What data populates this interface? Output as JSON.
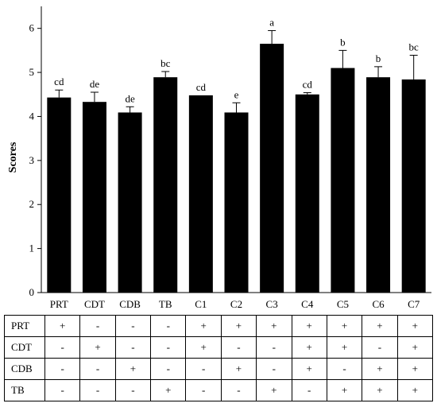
{
  "chart_data": {
    "type": "bar",
    "ylabel": "Scores",
    "xlabel": "",
    "ylim": [
      0,
      6.5
    ],
    "yticks": [
      0,
      1,
      2,
      3,
      4,
      5,
      6
    ],
    "categories": [
      "PRT",
      "CDT",
      "CDB",
      "TB",
      "C1",
      "C2",
      "C3",
      "C4",
      "C5",
      "C6",
      "C7"
    ],
    "values": [
      4.43,
      4.33,
      4.09,
      4.89,
      4.48,
      4.09,
      5.65,
      4.5,
      5.1,
      4.89,
      4.84
    ],
    "errors": [
      0.17,
      0.22,
      0.13,
      0.13,
      0.0,
      0.22,
      0.3,
      0.04,
      0.4,
      0.24,
      0.55
    ],
    "significance": [
      "cd",
      "de",
      "de",
      "bc",
      "cd",
      "e",
      "a",
      "cd",
      "b",
      "b",
      "bc"
    ],
    "bar_color": "#000000",
    "grid": false
  },
  "design_table": {
    "rows": [
      {
        "label": "PRT",
        "cells": [
          "+",
          "-",
          "-",
          "-",
          "+",
          "+",
          "+",
          "+",
          "+",
          "+",
          "+"
        ]
      },
      {
        "label": "CDT",
        "cells": [
          "-",
          "+",
          "-",
          "-",
          "+",
          "-",
          "-",
          "+",
          "+",
          "-",
          "+"
        ]
      },
      {
        "label": "CDB",
        "cells": [
          "-",
          "-",
          "+",
          "-",
          "-",
          "+",
          "-",
          "+",
          "-",
          "+",
          "+"
        ]
      },
      {
        "label": "TB",
        "cells": [
          "-",
          "-",
          "-",
          "+",
          "-",
          "-",
          "+",
          "-",
          "+",
          "+",
          "+"
        ]
      }
    ]
  }
}
